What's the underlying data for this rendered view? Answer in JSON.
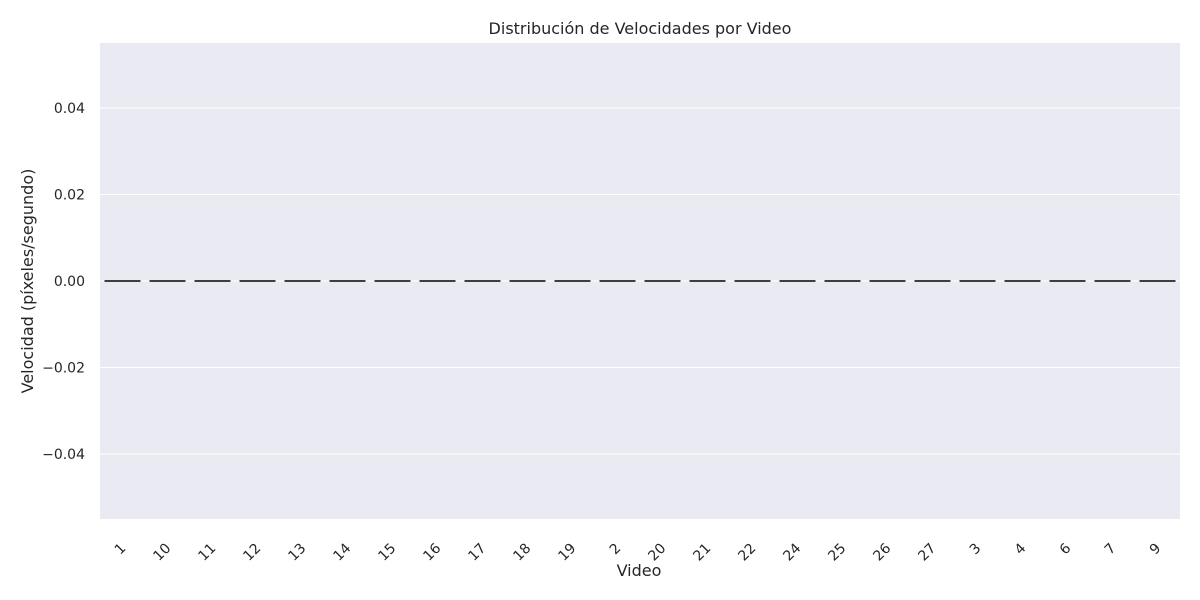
{
  "chart_data": {
    "type": "box",
    "title": "Distribución de Velocidades por Video",
    "xlabel": "Video",
    "ylabel": "Velocidad (píxeles/segundo)",
    "categories": [
      "1",
      "10",
      "11",
      "12",
      "13",
      "14",
      "15",
      "16",
      "17",
      "18",
      "19",
      "2",
      "20",
      "21",
      "22",
      "24",
      "25",
      "26",
      "27",
      "3",
      "4",
      "6",
      "7",
      "9"
    ],
    "values": [
      0,
      0,
      0,
      0,
      0,
      0,
      0,
      0,
      0,
      0,
      0,
      0,
      0,
      0,
      0,
      0,
      0,
      0,
      0,
      0,
      0,
      0,
      0,
      0
    ],
    "yticks": [
      -0.04,
      -0.02,
      0.0,
      0.02,
      0.04
    ],
    "ytick_labels": [
      "−0.04",
      "−0.02",
      "0.00",
      "0.02",
      "0.04"
    ],
    "ylim": [
      -0.055,
      0.055
    ],
    "grid": true,
    "x_tick_rotation": "45 degrees",
    "colors": {
      "plot_background": "#eaeaf2",
      "grid": "#ffffff",
      "box_line": "#3f3f3f",
      "text": "#262626"
    }
  }
}
